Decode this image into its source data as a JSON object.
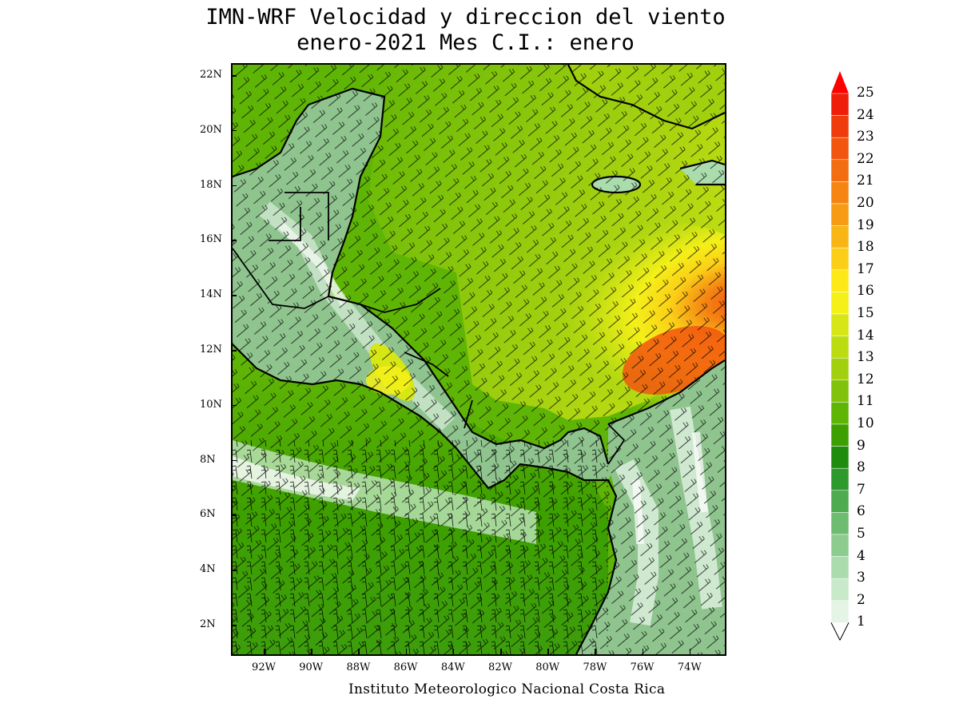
{
  "title_line1": "IMN-WRF Velocidad y direccion del viento",
  "title_line2": "enero-2021 Mes C.I.: enero",
  "credit": "Instituto Meteorologico Nacional Costa Rica",
  "lat_labels": [
    "22N",
    "20N",
    "18N",
    "16N",
    "14N",
    "12N",
    "10N",
    "8N",
    "6N",
    "4N",
    "2N"
  ],
  "lon_labels": [
    "92W",
    "90W",
    "88W",
    "86W",
    "84W",
    "82W",
    "80W",
    "78W",
    "76W",
    "74W"
  ],
  "colorbar": {
    "levels": [
      "25",
      "24",
      "23",
      "22",
      "21",
      "20",
      "19",
      "18",
      "17",
      "16",
      "15",
      "14",
      "13",
      "12",
      "11",
      "10",
      "9",
      "8",
      "7",
      "6",
      "5",
      "4",
      "3",
      "2",
      "1"
    ],
    "colors": [
      "#ef1e0a",
      "#f03c0c",
      "#f2550e",
      "#f46c10",
      "#f58412",
      "#f79b14",
      "#f9b515",
      "#fbcf17",
      "#fde918",
      "#f4f018",
      "#d7e615",
      "#bcdc12",
      "#a1d00f",
      "#80c30a",
      "#5fb505",
      "#3da000",
      "#1f8c0e",
      "#2e9a2e",
      "#4fab50",
      "#6dbc70",
      "#8ccc8e",
      "#abdcae",
      "#c8e9ca",
      "#e4f4e5"
    ],
    "arrow_color": "#ff0000"
  },
  "colors": {
    "ocean_pacific": "#3d9e0c",
    "caribbean": "#9fcb12",
    "jet_max": "#f46c10",
    "land": "#8fc48e"
  }
}
